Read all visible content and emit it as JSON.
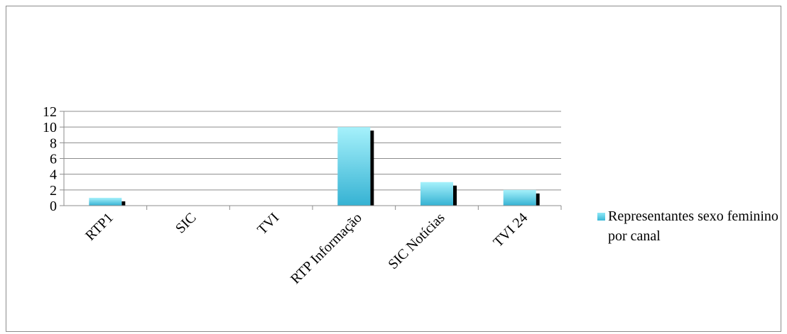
{
  "chart_data": {
    "type": "bar",
    "categories": [
      "RTP1",
      "SIC",
      "TVI",
      "RTP Informação",
      "SIC Notícias",
      "TVI 24"
    ],
    "series": [
      {
        "name": "Representantes sexo feminino por canal",
        "values": [
          1,
          0,
          0,
          10,
          3,
          2
        ]
      }
    ],
    "ylim": [
      0,
      12
    ],
    "yticks": [
      0,
      2,
      4,
      6,
      8,
      10,
      12
    ],
    "grid": true,
    "legend": "right",
    "colors": {
      "bar_top": "#a6f1fb",
      "bar_bottom": "#35b2d3",
      "shadow": "#000000",
      "grid": "#8c8c8c"
    }
  }
}
